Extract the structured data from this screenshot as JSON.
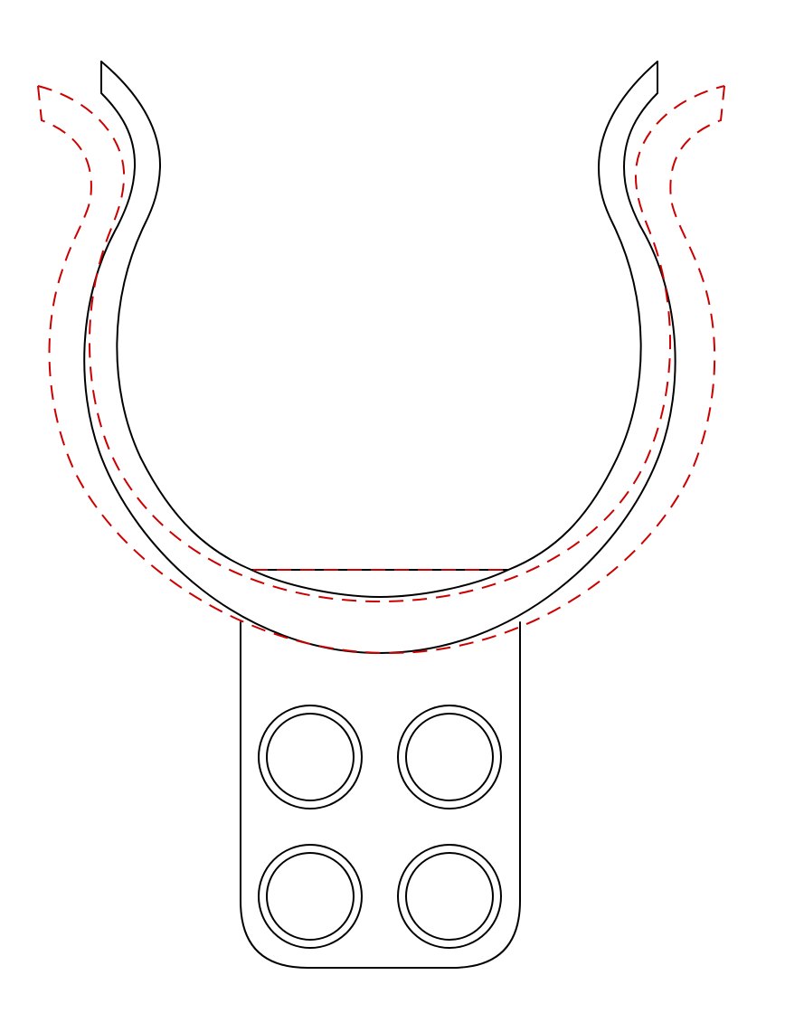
{
  "drawing": {
    "description_visible_text": "",
    "colors": {
      "background": "#ffffff",
      "outline": "#000000",
      "flexed_outline": "#cc0000"
    },
    "components": [
      {
        "id": "clip-ring",
        "style": "solid",
        "color_key": "outline"
      },
      {
        "id": "mounting-tab",
        "style": "solid",
        "color_key": "outline"
      },
      {
        "id": "flexed-ring",
        "style": "dashed",
        "color_key": "flexed_outline"
      }
    ],
    "holes": {
      "count": 4,
      "rows": 2,
      "columns": 2,
      "style": "double-circle"
    }
  }
}
